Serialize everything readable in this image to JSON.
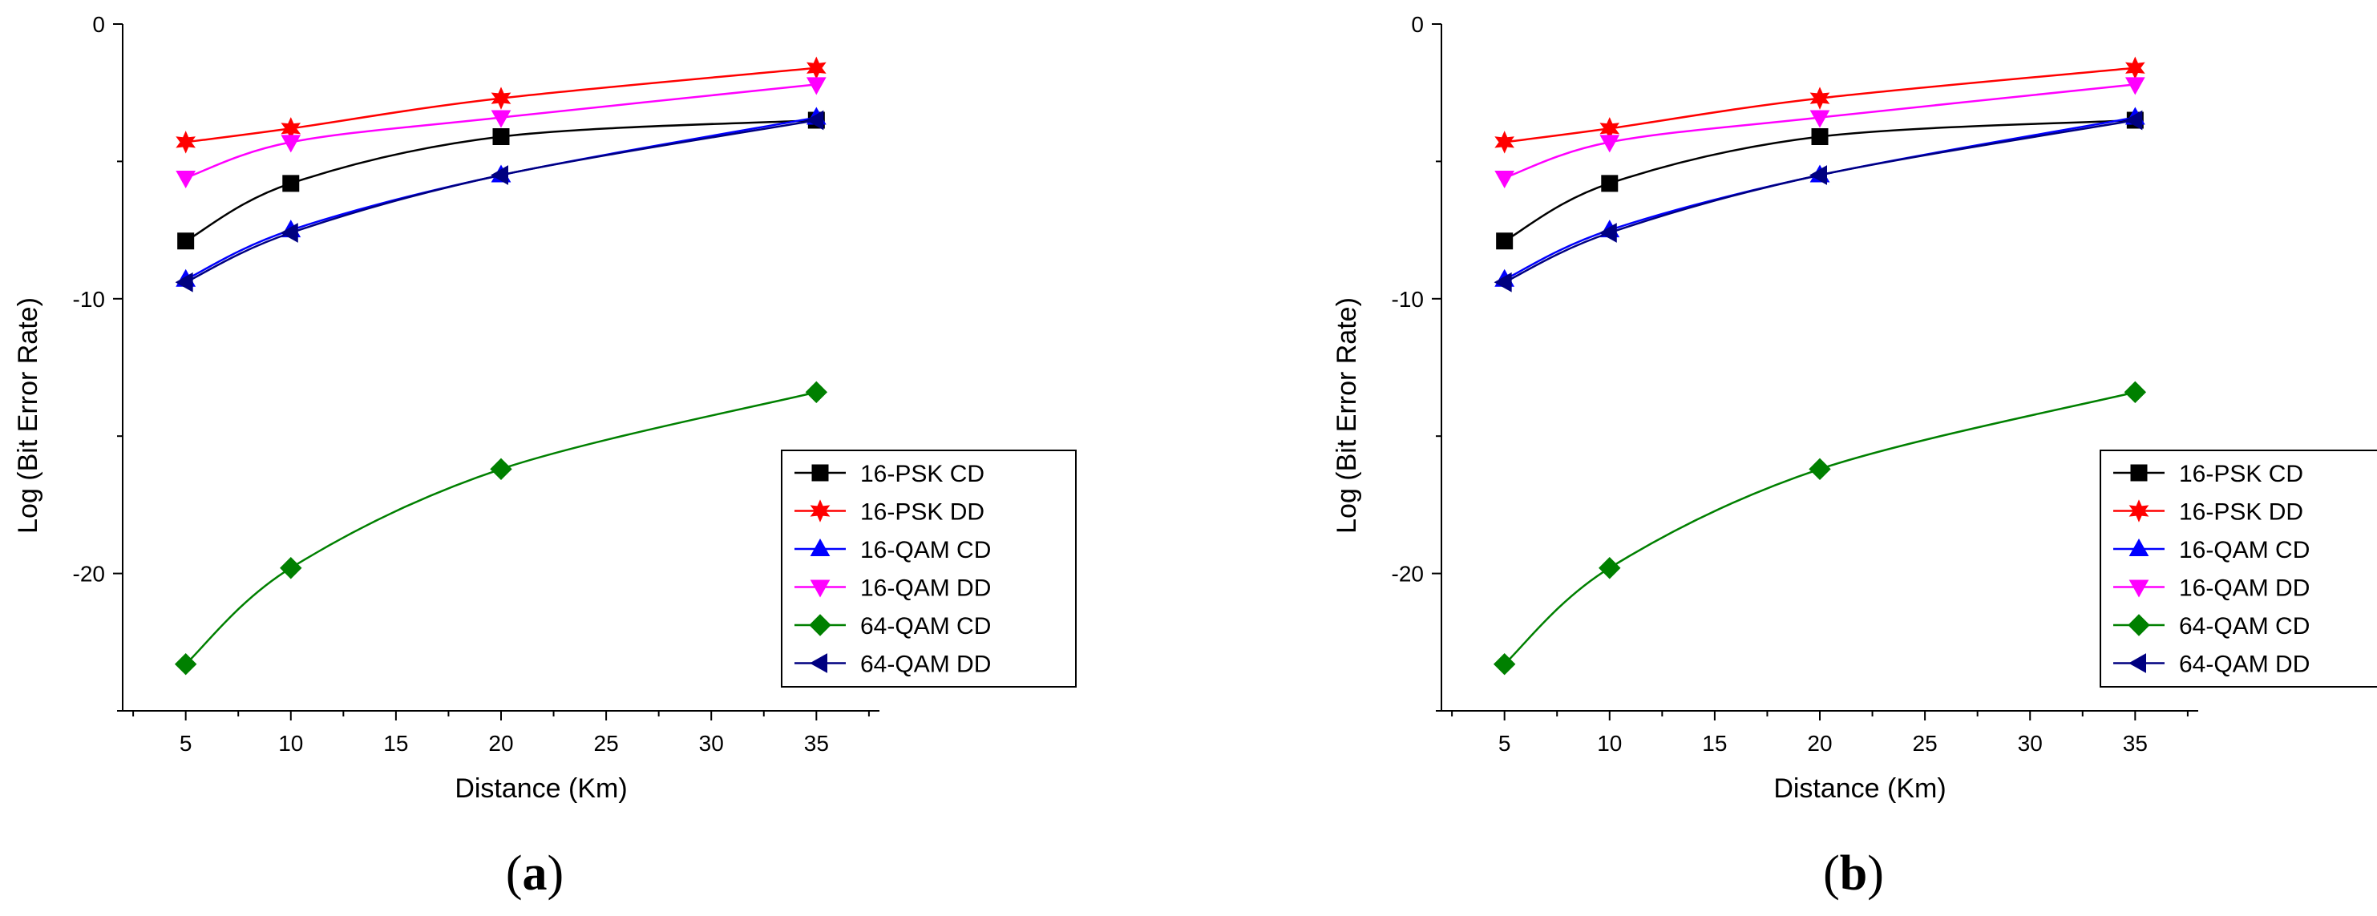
{
  "colors": {
    "16-PSK CD": "#000000",
    "16-PSK DD": "#ff0000",
    "16-QAM CD": "#0000ff",
    "16-QAM DD": "#ff00ff",
    "64-QAM CD": "#008000",
    "64-QAM DD": "#000080"
  },
  "chart_data": [
    {
      "panel": "a",
      "type": "line",
      "xlabel": "Distance (Km)",
      "ylabel": "Log (Bit Error Rate)",
      "xlim": [
        2,
        38
      ],
      "ylim": [
        -25,
        0
      ],
      "xticks": [
        5,
        10,
        15,
        20,
        25,
        30,
        35
      ],
      "yticks": [
        0,
        -10,
        -20
      ],
      "x": [
        5,
        10,
        20,
        35
      ],
      "legend_position": "bottom-right",
      "series": [
        {
          "name": "16-PSK CD",
          "marker": "square",
          "values": [
            -7.9,
            -5.8,
            -4.1,
            -3.5
          ]
        },
        {
          "name": "16-PSK DD",
          "marker": "star",
          "values": [
            -4.3,
            -3.8,
            -2.7,
            -1.6
          ]
        },
        {
          "name": "16-QAM CD",
          "marker": "triangle-up",
          "values": [
            -9.3,
            -7.5,
            -5.5,
            -3.4
          ]
        },
        {
          "name": "16-QAM DD",
          "marker": "triangle-down",
          "values": [
            -5.6,
            -4.3,
            -3.4,
            -2.2
          ]
        },
        {
          "name": "64-QAM CD",
          "marker": "diamond",
          "values": [
            -23.3,
            -19.8,
            -16.2,
            -13.4
          ]
        },
        {
          "name": "64-QAM DD",
          "marker": "triangle-left",
          "values": [
            -9.4,
            -7.6,
            -5.5,
            -3.5
          ]
        }
      ]
    },
    {
      "panel": "b",
      "type": "line",
      "xlabel": "Distance (Km)",
      "ylabel": "Log (Bit Error Rate)",
      "xlim": [
        2,
        38
      ],
      "ylim": [
        -25,
        0
      ],
      "xticks": [
        5,
        10,
        15,
        20,
        25,
        30,
        35
      ],
      "yticks": [
        0,
        -10,
        -20
      ],
      "x": [
        5,
        10,
        20,
        35
      ],
      "legend_position": "bottom-right",
      "series": [
        {
          "name": "16-PSK CD",
          "marker": "square",
          "values": [
            -7.9,
            -5.8,
            -4.1,
            -3.5
          ]
        },
        {
          "name": "16-PSK DD",
          "marker": "star",
          "values": [
            -4.3,
            -3.8,
            -2.7,
            -1.6
          ]
        },
        {
          "name": "16-QAM CD",
          "marker": "triangle-up",
          "values": [
            -9.3,
            -7.5,
            -5.5,
            -3.4
          ]
        },
        {
          "name": "16-QAM DD",
          "marker": "triangle-down",
          "values": [
            -5.6,
            -4.3,
            -3.4,
            -2.2
          ]
        },
        {
          "name": "64-QAM CD",
          "marker": "diamond",
          "values": [
            -23.3,
            -19.8,
            -16.2,
            -13.4
          ]
        },
        {
          "name": "64-QAM DD",
          "marker": "triangle-left",
          "values": [
            -9.4,
            -7.6,
            -5.5,
            -3.5
          ]
        }
      ]
    }
  ],
  "panel_labels": {
    "a": {
      "open": "(",
      "letter": "a",
      "close": ")"
    },
    "b": {
      "open": "(",
      "letter": "b",
      "close": ")"
    }
  }
}
